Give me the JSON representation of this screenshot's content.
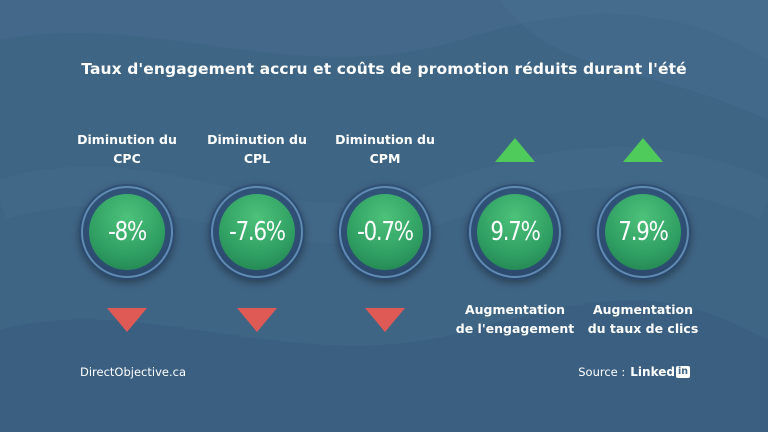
{
  "title": "Taux d'engagement accru et coûts de promotion réduits durant l'été",
  "metrics": [
    {
      "value": "-8%",
      "label_line1": "Diminution du",
      "label_line2": "CPC",
      "direction": "down"
    },
    {
      "value": "-7.6%",
      "label_line1": "Diminution du",
      "label_line2": "CPL",
      "direction": "down"
    },
    {
      "value": "-0.7%",
      "label_line1": "Diminution du",
      "label_line2": "CPM",
      "direction": "down"
    },
    {
      "value": "9.7%",
      "label_line1": "Augmentation",
      "label_line2": "de l'engagement",
      "direction": "up"
    },
    {
      "value": "7.9%",
      "label_line1": "Augmentation",
      "label_line2": "du taux de clics",
      "direction": "up"
    }
  ],
  "footer": {
    "site": "DirectObjective.ca",
    "source_label": "Source :",
    "source_brand": "Linked",
    "source_brand_box": "in"
  },
  "colors": {
    "background": "#3f6585",
    "increase": "#4ecb5a",
    "decrease": "#e05a55",
    "disc_green": "#2f9e62"
  }
}
